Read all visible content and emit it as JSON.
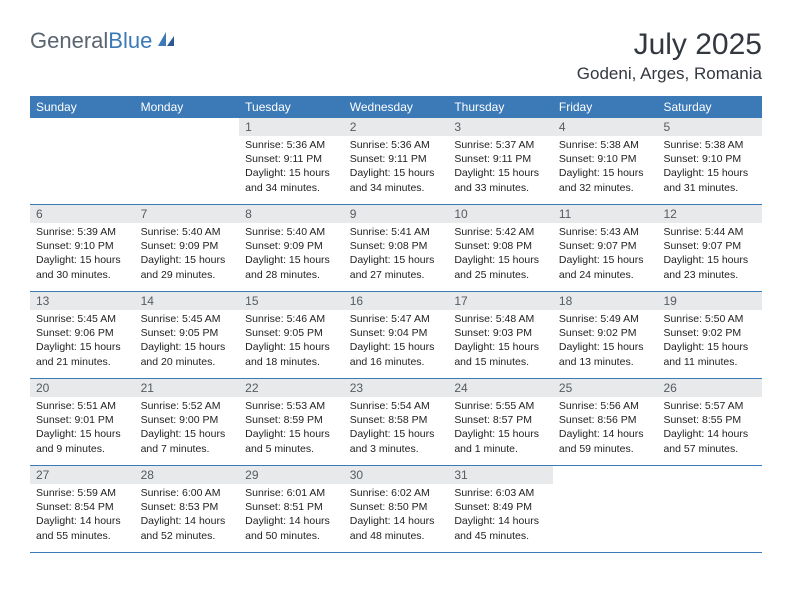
{
  "logo": {
    "text1": "General",
    "text2": "Blue"
  },
  "title": "July 2025",
  "location": "Godeni, Arges, Romania",
  "colors": {
    "header_bg": "#3b79b7",
    "header_text": "#ffffff",
    "daynum_bg": "#e8e9ea",
    "daynum_text": "#555b62",
    "body_text": "#222222",
    "page_bg": "#ffffff",
    "border": "#3b79b7",
    "logo_gray": "#5a6570",
    "logo_blue": "#3b79b7",
    "title_color": "#333840"
  },
  "fonts": {
    "title_size_pt": 22,
    "location_size_pt": 13,
    "weekday_size_pt": 9,
    "daynum_size_pt": 9,
    "content_size_pt": 8
  },
  "weekdays": [
    "Sunday",
    "Monday",
    "Tuesday",
    "Wednesday",
    "Thursday",
    "Friday",
    "Saturday"
  ],
  "weeks": [
    [
      null,
      null,
      {
        "n": "1",
        "sr": "5:36 AM",
        "ss": "9:11 PM",
        "dl": "15 hours and 34 minutes."
      },
      {
        "n": "2",
        "sr": "5:36 AM",
        "ss": "9:11 PM",
        "dl": "15 hours and 34 minutes."
      },
      {
        "n": "3",
        "sr": "5:37 AM",
        "ss": "9:11 PM",
        "dl": "15 hours and 33 minutes."
      },
      {
        "n": "4",
        "sr": "5:38 AM",
        "ss": "9:10 PM",
        "dl": "15 hours and 32 minutes."
      },
      {
        "n": "5",
        "sr": "5:38 AM",
        "ss": "9:10 PM",
        "dl": "15 hours and 31 minutes."
      }
    ],
    [
      {
        "n": "6",
        "sr": "5:39 AM",
        "ss": "9:10 PM",
        "dl": "15 hours and 30 minutes."
      },
      {
        "n": "7",
        "sr": "5:40 AM",
        "ss": "9:09 PM",
        "dl": "15 hours and 29 minutes."
      },
      {
        "n": "8",
        "sr": "5:40 AM",
        "ss": "9:09 PM",
        "dl": "15 hours and 28 minutes."
      },
      {
        "n": "9",
        "sr": "5:41 AM",
        "ss": "9:08 PM",
        "dl": "15 hours and 27 minutes."
      },
      {
        "n": "10",
        "sr": "5:42 AM",
        "ss": "9:08 PM",
        "dl": "15 hours and 25 minutes."
      },
      {
        "n": "11",
        "sr": "5:43 AM",
        "ss": "9:07 PM",
        "dl": "15 hours and 24 minutes."
      },
      {
        "n": "12",
        "sr": "5:44 AM",
        "ss": "9:07 PM",
        "dl": "15 hours and 23 minutes."
      }
    ],
    [
      {
        "n": "13",
        "sr": "5:45 AM",
        "ss": "9:06 PM",
        "dl": "15 hours and 21 minutes."
      },
      {
        "n": "14",
        "sr": "5:45 AM",
        "ss": "9:05 PM",
        "dl": "15 hours and 20 minutes."
      },
      {
        "n": "15",
        "sr": "5:46 AM",
        "ss": "9:05 PM",
        "dl": "15 hours and 18 minutes."
      },
      {
        "n": "16",
        "sr": "5:47 AM",
        "ss": "9:04 PM",
        "dl": "15 hours and 16 minutes."
      },
      {
        "n": "17",
        "sr": "5:48 AM",
        "ss": "9:03 PM",
        "dl": "15 hours and 15 minutes."
      },
      {
        "n": "18",
        "sr": "5:49 AM",
        "ss": "9:02 PM",
        "dl": "15 hours and 13 minutes."
      },
      {
        "n": "19",
        "sr": "5:50 AM",
        "ss": "9:02 PM",
        "dl": "15 hours and 11 minutes."
      }
    ],
    [
      {
        "n": "20",
        "sr": "5:51 AM",
        "ss": "9:01 PM",
        "dl": "15 hours and 9 minutes."
      },
      {
        "n": "21",
        "sr": "5:52 AM",
        "ss": "9:00 PM",
        "dl": "15 hours and 7 minutes."
      },
      {
        "n": "22",
        "sr": "5:53 AM",
        "ss": "8:59 PM",
        "dl": "15 hours and 5 minutes."
      },
      {
        "n": "23",
        "sr": "5:54 AM",
        "ss": "8:58 PM",
        "dl": "15 hours and 3 minutes."
      },
      {
        "n": "24",
        "sr": "5:55 AM",
        "ss": "8:57 PM",
        "dl": "15 hours and 1 minute."
      },
      {
        "n": "25",
        "sr": "5:56 AM",
        "ss": "8:56 PM",
        "dl": "14 hours and 59 minutes."
      },
      {
        "n": "26",
        "sr": "5:57 AM",
        "ss": "8:55 PM",
        "dl": "14 hours and 57 minutes."
      }
    ],
    [
      {
        "n": "27",
        "sr": "5:59 AM",
        "ss": "8:54 PM",
        "dl": "14 hours and 55 minutes."
      },
      {
        "n": "28",
        "sr": "6:00 AM",
        "ss": "8:53 PM",
        "dl": "14 hours and 52 minutes."
      },
      {
        "n": "29",
        "sr": "6:01 AM",
        "ss": "8:51 PM",
        "dl": "14 hours and 50 minutes."
      },
      {
        "n": "30",
        "sr": "6:02 AM",
        "ss": "8:50 PM",
        "dl": "14 hours and 48 minutes."
      },
      {
        "n": "31",
        "sr": "6:03 AM",
        "ss": "8:49 PM",
        "dl": "14 hours and 45 minutes."
      },
      null,
      null
    ]
  ],
  "labels": {
    "sunrise": "Sunrise:",
    "sunset": "Sunset:",
    "daylight": "Daylight:"
  }
}
